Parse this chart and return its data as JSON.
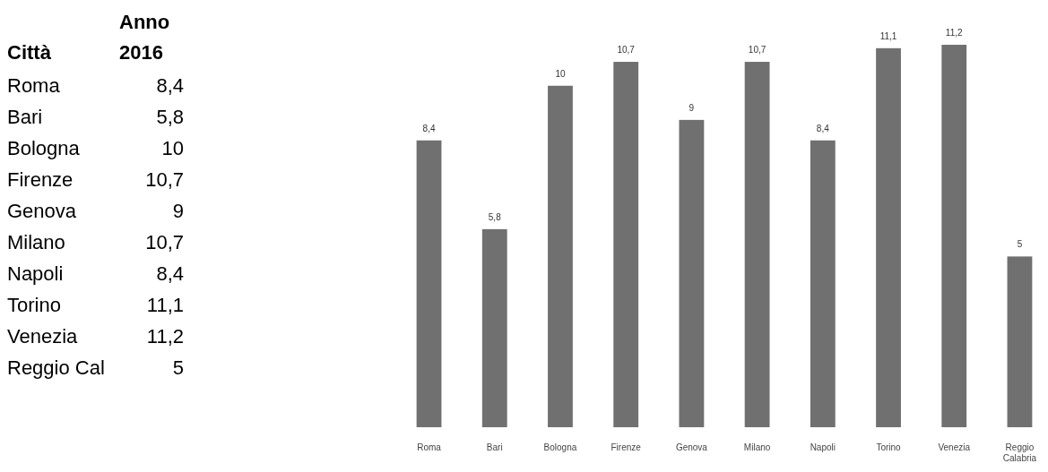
{
  "chart_data": [
    {
      "type": "other",
      "annotations": [
        "Città",
        "Anno 2016"
      ],
      "categories": [
        "Roma",
        "Bari",
        "Bologna",
        "Firenze",
        "Genova",
        "Milano",
        "Napoli",
        "Torino",
        "Venezia",
        "Reggio Cal"
      ],
      "value_labels": [
        "8,4",
        "5,8",
        "10",
        "10,7",
        "9",
        "10,7",
        "8,4",
        "11,1",
        "11,2",
        "5"
      ]
    },
    {
      "type": "bar",
      "categories": [
        "Roma",
        "Bari",
        "Bologna",
        "Firenze",
        "Genova",
        "Milano",
        "Napoli",
        "Torino",
        "Venezia",
        "Reggio Calabria"
      ],
      "values": [
        8.4,
        5.8,
        10,
        10.7,
        9,
        10.7,
        8.4,
        11.1,
        11.2,
        5
      ],
      "value_labels": [
        "8,4",
        "5,8",
        "10",
        "10,7",
        "9",
        "10,7",
        "8,4",
        "11,1",
        "11,2",
        "5"
      ],
      "color": "#707070",
      "tick_labels": "x"
    }
  ]
}
